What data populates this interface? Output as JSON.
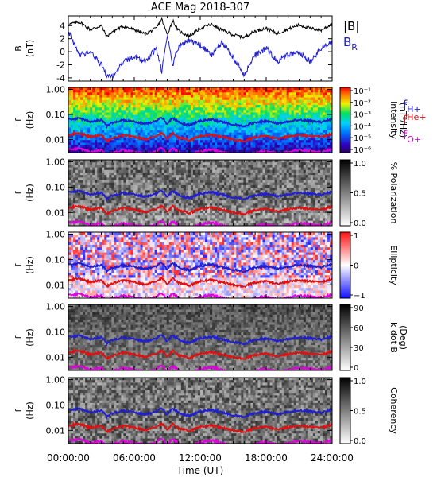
{
  "chart_data": {
    "type": "line",
    "title": "ACE Mag 2018-307",
    "xlabel": "Time (UT)",
    "x_ticks": [
      "00:00:00",
      "06:00:00",
      "12:00:00",
      "18:00:00",
      "24:00:00"
    ],
    "xlim_hours": [
      0,
      24
    ],
    "panels": [
      {
        "kind": "line",
        "ylabel": "B",
        "yunit": "(nT)",
        "ylim": [
          -4.5,
          5.5
        ],
        "y_ticks": [
          -4,
          -2,
          0,
          2,
          4
        ],
        "legend": [
          {
            "label": "|B|",
            "color": "#000000"
          },
          {
            "label": "B",
            "sub": "R",
            "color": "#1f1fd0"
          }
        ],
        "series": [
          {
            "name": "|B|",
            "color": "#000000",
            "x": [
              0,
              1,
              2,
              3,
              3.5,
              4,
              5,
              6,
              7,
              8,
              8.5,
              9,
              9.5,
              10,
              11,
              12,
              13,
              14,
              15,
              16,
              17,
              18,
              19,
              20,
              21,
              22,
              23,
              24
            ],
            "y": [
              4.2,
              4.6,
              3.4,
              4.0,
              2.3,
              3.1,
              3.9,
              3.4,
              2.7,
              3.6,
              5.0,
              2.6,
              4.8,
              3.2,
              2.4,
              3.6,
              4.2,
              3.3,
              2.6,
              2.2,
              3.2,
              3.6,
              2.8,
              3.5,
              4.1,
              3.6,
              3.3,
              4.3
            ]
          },
          {
            "name": "B_R",
            "color": "#1f1fd0",
            "x": [
              0,
              1,
              2,
              3,
              3.5,
              4,
              5,
              6,
              7,
              8,
              8.5,
              9,
              9.5,
              10,
              11,
              12,
              13,
              14,
              15,
              16,
              17,
              18,
              19,
              20,
              21,
              22,
              23,
              24
            ],
            "y": [
              3.0,
              -0.5,
              0.0,
              -2.0,
              -3.6,
              -3.8,
              -1.5,
              -0.8,
              -1.5,
              0.5,
              -3.0,
              2.5,
              -2.0,
              0.8,
              1.8,
              1.0,
              -0.5,
              1.5,
              -1.0,
              -3.5,
              -0.5,
              0.5,
              -1.5,
              -0.5,
              -0.2,
              -1.5,
              0.5,
              1.5
            ]
          }
        ]
      },
      {
        "kind": "spectrogram",
        "ylabel": "f",
        "yunit": "(Hz)",
        "y_ticks": [
          "0.01",
          "0.10",
          "1.00"
        ],
        "colorbar": {
          "label": "Intensity",
          "unit": "(nT²/Hz)",
          "ticks": [
            "10⁻¹",
            "10⁻²",
            "10⁻³",
            "10⁻⁴",
            "10⁻⁵",
            "10⁻⁶"
          ],
          "style": "rainbow"
        },
        "legend": [
          {
            "main": "f",
            "sub": "H+",
            "color": "#1f1fd0"
          },
          {
            "main": "f",
            "sub": "He+",
            "color": "#e01010"
          },
          {
            "main": "f",
            "sub": "O+",
            "color": "#e000e0"
          }
        ]
      },
      {
        "kind": "spectrogram",
        "ylabel": "f",
        "yunit": "(Hz)",
        "y_ticks": [
          "0.01",
          "0.10",
          "1.00"
        ],
        "colorbar": {
          "label": "% Polarization",
          "unit": "",
          "ticks": [
            "1.0",
            "0.5",
            "0.0"
          ],
          "style": "gray"
        }
      },
      {
        "kind": "spectrogram",
        "ylabel": "f",
        "yunit": "(Hz)",
        "y_ticks": [
          "0.01",
          "0.10",
          "1.00"
        ],
        "colorbar": {
          "label": "Ellipticity",
          "unit": "",
          "ticks": [
            "1",
            "0",
            "−1"
          ],
          "style": "bwr"
        }
      },
      {
        "kind": "spectrogram",
        "ylabel": "f",
        "yunit": "(Hz)",
        "y_ticks": [
          "0.01",
          "0.10",
          "1.00"
        ],
        "colorbar": {
          "label": "k dot B",
          "unit": "(Deg)",
          "ticks": [
            "90",
            "60",
            "30",
            "0"
          ],
          "style": "gray"
        }
      },
      {
        "kind": "spectrogram",
        "ylabel": "f",
        "yunit": "(Hz)",
        "y_ticks": [
          "0.01",
          "0.10",
          "1.00"
        ],
        "colorbar": {
          "label": "Coherency",
          "unit": "",
          "ticks": [
            "1.0",
            "0.5",
            "0.0"
          ],
          "style": "gray"
        }
      }
    ],
    "gyrofrequency_curves": {
      "x": [
        0,
        1,
        2,
        3,
        3.5,
        4,
        5,
        6,
        7,
        8,
        8.5,
        9,
        9.5,
        10,
        11,
        12,
        13,
        14,
        15,
        16,
        17,
        18,
        19,
        20,
        21,
        22,
        23,
        24
      ],
      "f_H+": [
        0.064,
        0.07,
        0.052,
        0.061,
        0.035,
        0.047,
        0.059,
        0.052,
        0.041,
        0.055,
        0.076,
        0.04,
        0.073,
        0.049,
        0.037,
        0.055,
        0.064,
        0.05,
        0.04,
        0.034,
        0.049,
        0.055,
        0.043,
        0.053,
        0.062,
        0.055,
        0.05,
        0.066
      ],
      "f_He+": [
        0.016,
        0.0175,
        0.013,
        0.0152,
        0.0088,
        0.0118,
        0.0148,
        0.013,
        0.0103,
        0.0138,
        0.019,
        0.01,
        0.0183,
        0.0123,
        0.0093,
        0.0138,
        0.016,
        0.0125,
        0.01,
        0.0085,
        0.0123,
        0.0138,
        0.0108,
        0.0133,
        0.0155,
        0.0138,
        0.0125,
        0.0165
      ],
      "f_O+": [
        0.004,
        0.0044,
        0.0033,
        0.0038,
        0.0022,
        0.003,
        0.0037,
        0.0033,
        0.0026,
        0.0034,
        0.0048,
        0.0025,
        0.0046,
        0.0031,
        0.0023,
        0.0034,
        0.004,
        0.0031,
        0.0025,
        0.0021,
        0.0031,
        0.0034,
        0.0027,
        0.0033,
        0.0039,
        0.0034,
        0.0031,
        0.0041
      ],
      "colors": {
        "f_H+": "#1f1fd0",
        "f_He+": "#e01010",
        "f_O+": "#e000e0"
      }
    }
  }
}
